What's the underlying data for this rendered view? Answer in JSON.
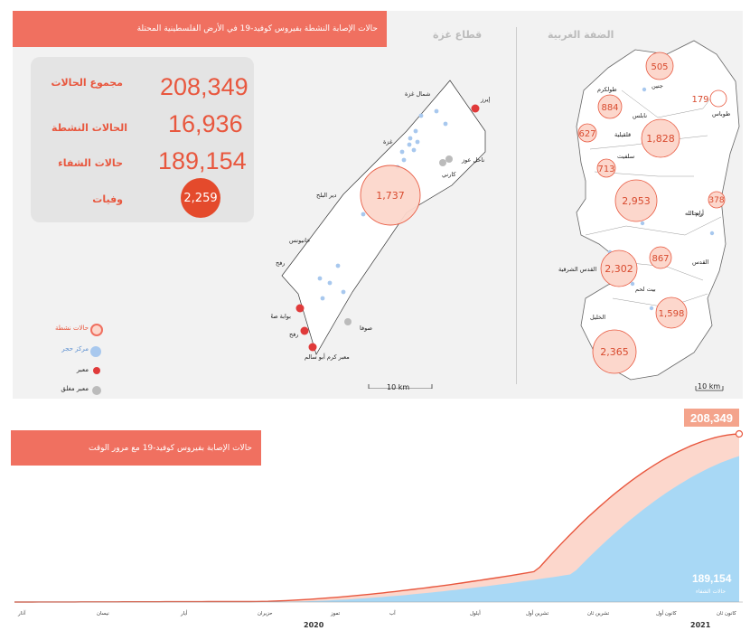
{
  "top_banner": {
    "title": "حالات الإصابة النشطة بفيروس  كوفيد-19 في الأرض الفلسطينية المحتلة"
  },
  "stats": {
    "total_label": "مجموع الحالات",
    "total_value": "208,349",
    "active_label": "الحالات النشطة",
    "active_value": "16,936",
    "recovered_label": "حالات الشفاء",
    "recovered_value": "189,154",
    "deaths_label": "وفيات",
    "deaths_value": "2,259"
  },
  "regions": {
    "gaza": "قطاع غزة",
    "west_bank": "الضفة الغربية"
  },
  "gaza_map": {
    "labels": {
      "north": "شمال غزة",
      "gaza": "غزة",
      "deir": "دير البلح",
      "khan": "خانيونس",
      "rafah": "رفح",
      "erez": "إيرز",
      "nahal": "ناحل عوز",
      "karni": "كارني",
      "sufa": "صوفا",
      "salahaddin": "بوابة صلاح الدين",
      "rafah_crossing": "رفح",
      "kerem": "معبر كرم أبو سالم"
    },
    "bubble_value": "1,737",
    "scale": "10 km"
  },
  "wb_map": {
    "bubbles": [
      {
        "value": "505",
        "label": "جنين"
      },
      {
        "value": "179",
        "label": "طوباس"
      },
      {
        "value": "884",
        "label": "طولكرم"
      },
      {
        "value": "627",
        "label": "قلقيلية"
      },
      {
        "value": "1,828",
        "label": "نابلس"
      },
      {
        "value": "713",
        "label": "سلفيت"
      },
      {
        "value": "2,953",
        "label": "رام الله"
      },
      {
        "value": "378",
        "label": "أريحا"
      },
      {
        "value": "2,302",
        "label": "القدس الشرقية"
      },
      {
        "value": "867",
        "label": "بيت لحم"
      },
      {
        "value": "1,598",
        "label": ""
      },
      {
        "value": "2,365",
        "label": "الخليل"
      }
    ],
    "jerusalem_label": "القدس",
    "scale": "10 km"
  },
  "legend": {
    "active": "حالات نشطة",
    "quarantine": "مركز حجر",
    "crossing": "معبر",
    "closed": "معبر مغلق",
    "colors": {
      "active": "#f07060",
      "quarantine": "#a8c8ee",
      "crossing": "#e03a3a",
      "closed": "#bbbbbb"
    }
  },
  "bottom_banner": {
    "title": "حالات الإصابة بفيروس كوفيد-19 مع مرور الوقت"
  },
  "chart_data": {
    "type": "area",
    "series": [
      {
        "name": "",
        "role": "total",
        "end_value": 208349
      },
      {
        "name": "حالات الشفاء",
        "role": "recovered",
        "end_value": 189154
      }
    ],
    "end_labels": {
      "total": "208,349",
      "recovered": "189,154",
      "recovered_name": "حالات الشفاء"
    },
    "months": [
      "آذار",
      "نيسان",
      "أيار",
      "حزيران",
      "تموز",
      "آب",
      "أيلول",
      "تشرين أول",
      "تشرين ثان",
      "كانون أول",
      "كانون ثان"
    ],
    "years": [
      "2020",
      "2021"
    ],
    "colors": {
      "total": "#e8573e",
      "gap": "#fcd7cc",
      "recovered": "#a8d8f5"
    }
  }
}
